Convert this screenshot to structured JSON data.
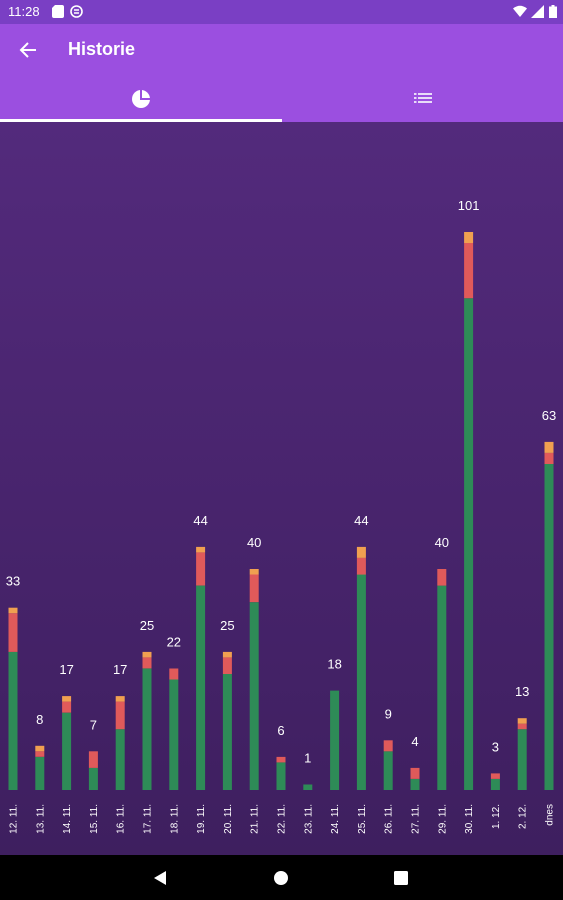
{
  "status_bar": {
    "time": "11:28",
    "icons": [
      "sd-card-icon",
      "sync-icon",
      "wifi-icon",
      "signal-icon",
      "battery-icon"
    ]
  },
  "app_bar": {
    "title": "Historie",
    "back_icon": "arrow-back-icon"
  },
  "tabs": [
    {
      "icon": "pie-chart-icon",
      "selected": true
    },
    {
      "icon": "list-icon",
      "selected": false
    }
  ],
  "colors": {
    "app_bar": "#9b4fe0",
    "green": "#2e8b57",
    "red": "#e05a5a",
    "orange": "#f0a050"
  },
  "chart_data": {
    "type": "bar",
    "stacked": true,
    "categories": [
      "12. 11.",
      "13. 11.",
      "14. 11.",
      "15. 11.",
      "16. 11.",
      "17. 11.",
      "18. 11.",
      "19. 11.",
      "20. 11.",
      "21. 11.",
      "22. 11.",
      "23. 11.",
      "24. 11.",
      "25. 11.",
      "26. 11.",
      "27. 11.",
      "29. 11.",
      "30. 11.",
      "1. 12.",
      "2. 12.",
      "dnes"
    ],
    "totals": [
      33,
      8,
      17,
      7,
      17,
      25,
      22,
      44,
      25,
      40,
      6,
      1,
      18,
      44,
      9,
      4,
      40,
      101,
      3,
      13,
      63
    ],
    "series": [
      {
        "color": "#2e8b57",
        "values": [
          25,
          6,
          14,
          4,
          11,
          22,
          20,
          37,
          21,
          34,
          5,
          1,
          18,
          39,
          7,
          2,
          37,
          89,
          2,
          11,
          59
        ]
      },
      {
        "color": "#e05a5a",
        "values": [
          7,
          1,
          2,
          3,
          5,
          2,
          2,
          6,
          3,
          5,
          1,
          0,
          0,
          3,
          2,
          2,
          3,
          10,
          1,
          1,
          2
        ]
      },
      {
        "color": "#f0a050",
        "values": [
          1,
          1,
          1,
          0,
          1,
          1,
          0,
          1,
          1,
          1,
          0,
          0,
          0,
          2,
          0,
          0,
          0,
          2,
          0,
          1,
          2
        ]
      }
    ],
    "ylim": [
      0,
      101
    ]
  },
  "nav_bar": {
    "buttons": [
      "back-nav-icon",
      "home-nav-icon",
      "recents-nav-icon"
    ]
  }
}
